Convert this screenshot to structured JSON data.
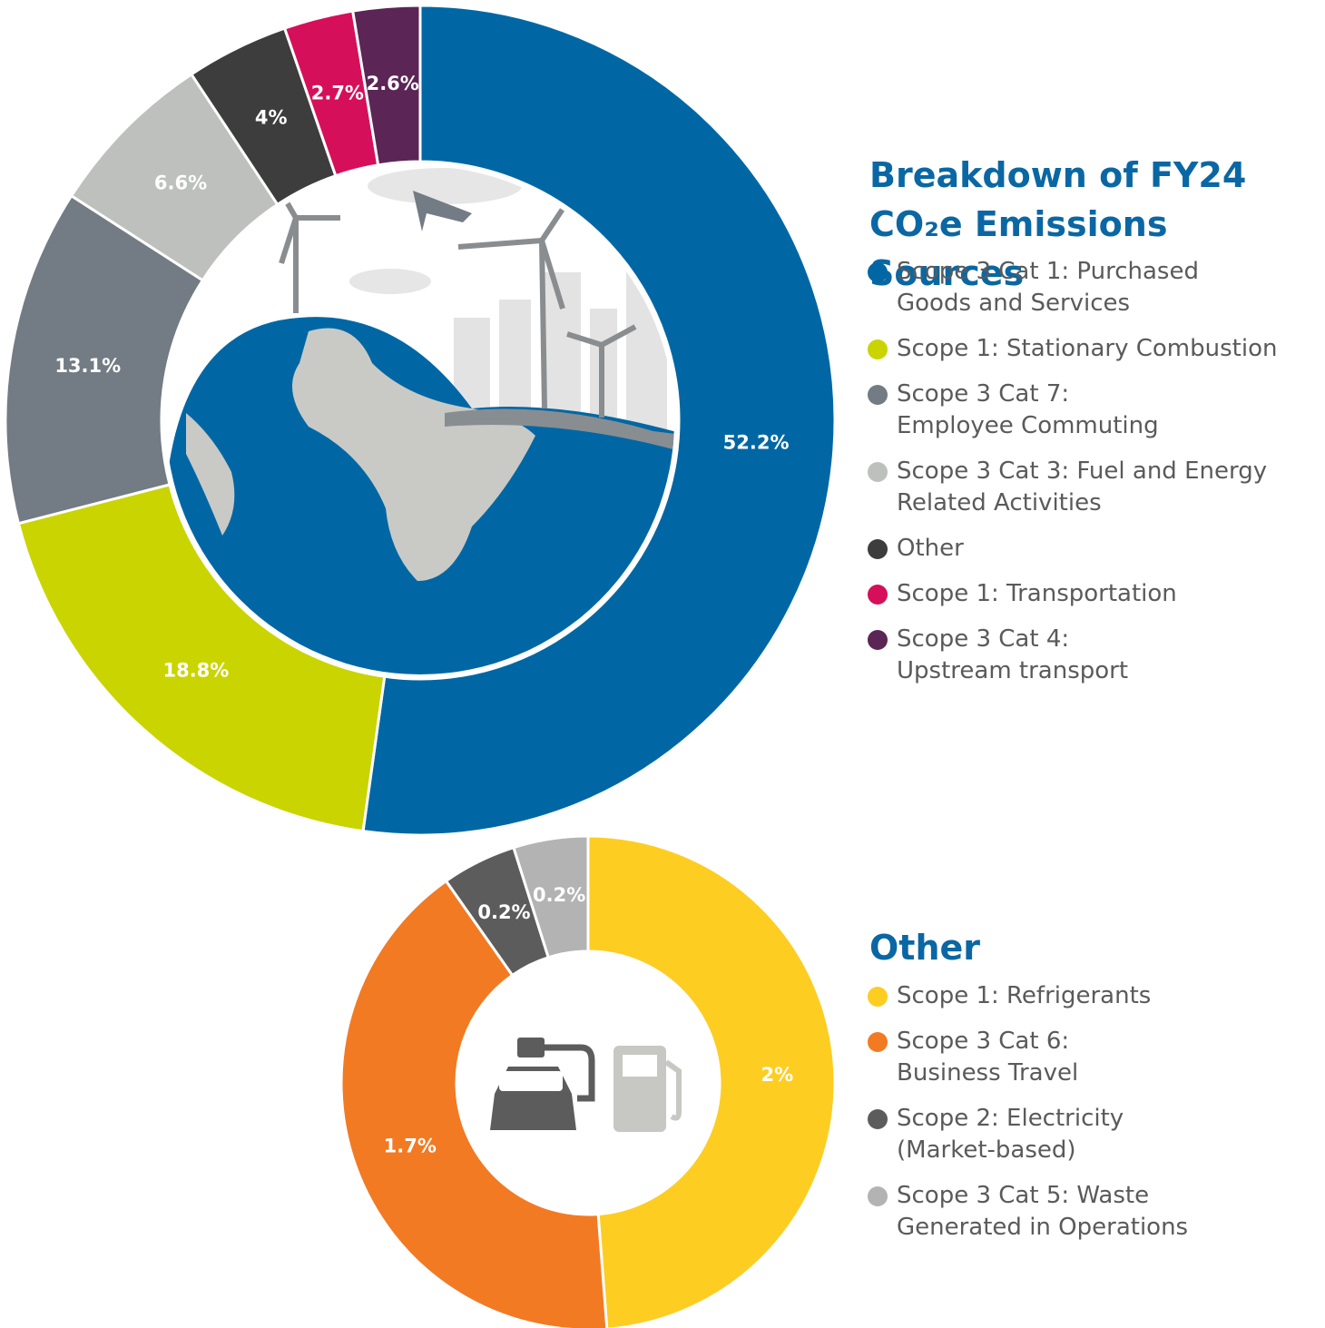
{
  "chart_data": [
    {
      "type": "donut",
      "title": "Breakdown of FY24 CO₂e Emissions Sources",
      "categories": [
        "Scope 3 Cat 1: Purchased\nGoods and Services",
        "Scope 1: Stationary Combustion",
        "Scope 3 Cat 7:\nEmployee Commuting",
        "Scope 3 Cat 3: Fuel and Energy\nRelated Activities",
        "Other",
        "Scope 1: Transportation",
        "Scope 3 Cat 4:\nUpstream transport"
      ],
      "values": [
        52.2,
        18.8,
        13.1,
        6.6,
        4,
        2.7,
        2.6
      ],
      "value_labels": [
        "52.2%",
        "18.8%",
        "13.1%",
        "6.6%",
        "4%",
        "2.7%",
        "2.6%"
      ],
      "colors": [
        "#0067a4",
        "#c9d400",
        "#737b84",
        "#bdc0bc",
        "#3d3d3d",
        "#d60f5b",
        "#5b2556"
      ]
    },
    {
      "type": "donut",
      "title": "Other",
      "categories": [
        "Scope 1: Refrigerants",
        "Scope 3 Cat 6:\nBusiness Travel",
        "Scope 2: Electricity\n(Market-based)",
        "Scope 3 Cat 5: Waste\nGenerated in Operations"
      ],
      "values": [
        2,
        1.7,
        0.2,
        0.2
      ],
      "value_labels": [
        "2%",
        "1.7%",
        "0.2%",
        "0.2%"
      ],
      "colors": [
        "#fdcd22",
        "#f27a23",
        "#5c5c5c",
        "#b3b3b3"
      ]
    }
  ]
}
